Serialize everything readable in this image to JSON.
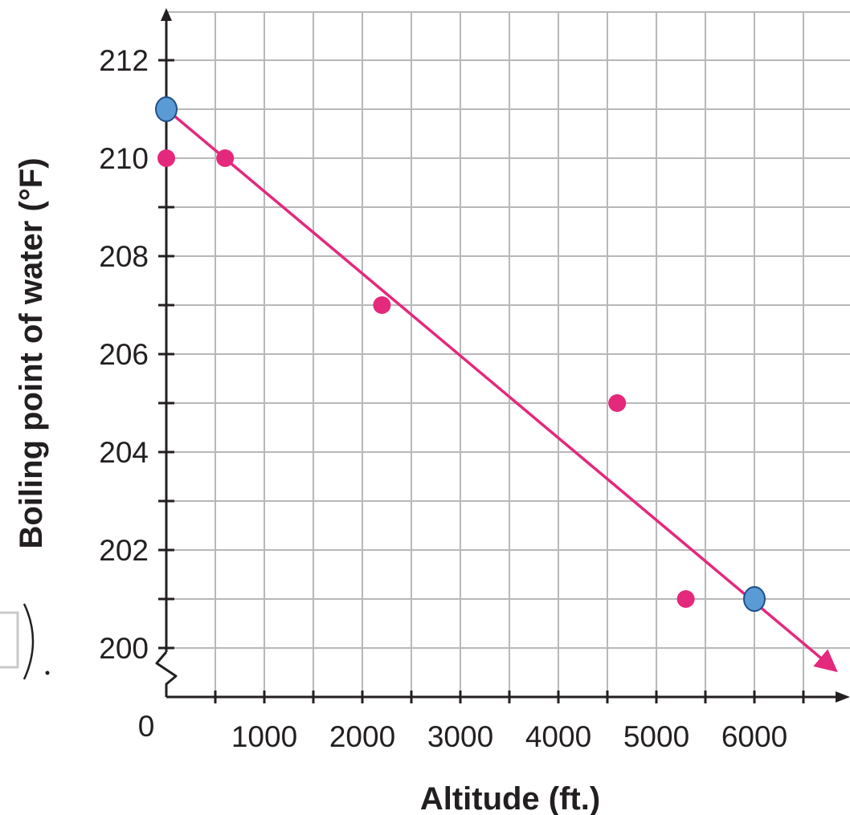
{
  "chart_data": {
    "type": "scatter",
    "xlabel": "Altitude (ft.)",
    "ylabel": "Boiling point of water (°F)",
    "origin_label": "0",
    "x_tick_labels": [
      "1000",
      "2000",
      "3000",
      "4000",
      "5000",
      "6000"
    ],
    "y_tick_labels": [
      "200",
      "202",
      "204",
      "206",
      "208",
      "210",
      "212"
    ],
    "xlim": [
      0,
      6800
    ],
    "ylim": [
      199,
      213
    ],
    "grid": true,
    "y_axis_break": true,
    "series": [
      {
        "kind": "points",
        "color": "#e4287c",
        "points": [
          {
            "x": 0,
            "y": 210
          },
          {
            "x": 600,
            "y": 210
          },
          {
            "x": 2200,
            "y": 207
          },
          {
            "x": 4600,
            "y": 205
          },
          {
            "x": 5300,
            "y": 201
          }
        ]
      },
      {
        "kind": "trend-line",
        "color": "#e4287c",
        "points": [
          {
            "x": 0,
            "y": 211
          },
          {
            "x": 6800,
            "y": 199.7
          }
        ]
      },
      {
        "kind": "highlighted-points",
        "color": "#5b9bd5",
        "points": [
          {
            "x": 0,
            "y": 211
          },
          {
            "x": 6000,
            "y": 201
          }
        ]
      }
    ]
  },
  "colors": {
    "axis": "#231f20",
    "grid": "#b8b8b8",
    "points": "#e4287c",
    "highlight": "#5b9bd5",
    "highlight_stroke": "#1f4f8a"
  }
}
